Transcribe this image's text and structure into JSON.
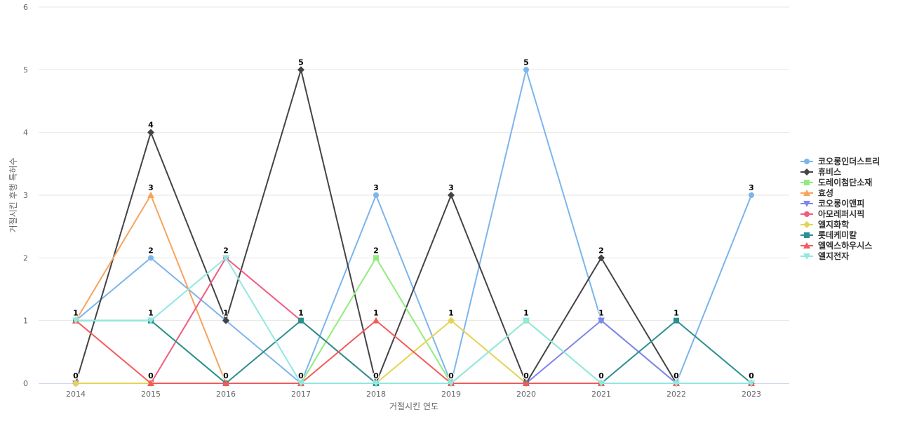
{
  "chart_data": {
    "type": "line",
    "title": "",
    "xlabel": "거절시킨 연도",
    "ylabel": "거절시킨 후행 특허수",
    "categories": [
      "2014",
      "2015",
      "2016",
      "2017",
      "2018",
      "2019",
      "2020",
      "2021",
      "2022",
      "2023"
    ],
    "ylim": [
      0,
      6
    ],
    "yticks": [
      0,
      1,
      2,
      3,
      4,
      5,
      6
    ],
    "grid": true,
    "legend_position": "right",
    "series": [
      {
        "name": "코오롱인더스트리",
        "color": "#7cb5ec",
        "marker": "circle",
        "values": [
          1,
          2,
          1,
          0,
          3,
          0,
          5,
          1,
          0,
          3
        ]
      },
      {
        "name": "휴비스",
        "color": "#434348",
        "marker": "diamond",
        "values": [
          0,
          4,
          1,
          5,
          0,
          3,
          0,
          2,
          0,
          0
        ]
      },
      {
        "name": "도레이첨단소재",
        "color": "#90ed7d",
        "marker": "square",
        "values": [
          1,
          1,
          0,
          0,
          2,
          0,
          1,
          0,
          0,
          0
        ]
      },
      {
        "name": "효성",
        "color": "#f7a35c",
        "marker": "triangle",
        "values": [
          1,
          3,
          0,
          0,
          0,
          0,
          0,
          0,
          0,
          0
        ]
      },
      {
        "name": "코오롱이앤피",
        "color": "#8085e9",
        "marker": "triangle-down",
        "values": [
          0,
          0,
          0,
          0,
          0,
          0,
          0,
          1,
          0,
          0
        ]
      },
      {
        "name": "아모레퍼시픽",
        "color": "#f15c80",
        "marker": "circle",
        "values": [
          0,
          0,
          2,
          1,
          0,
          0,
          0,
          0,
          0,
          0
        ]
      },
      {
        "name": "엘지화학",
        "color": "#e4d354",
        "marker": "diamond",
        "values": [
          0,
          0,
          0,
          0,
          0,
          1,
          0,
          0,
          0,
          0
        ]
      },
      {
        "name": "롯데케미칼",
        "color": "#2b908f",
        "marker": "square",
        "values": [
          1,
          1,
          0,
          1,
          0,
          0,
          0,
          0,
          1,
          0
        ]
      },
      {
        "name": "엘엑스하우시스",
        "color": "#f45b5b",
        "marker": "triangle",
        "values": [
          1,
          0,
          0,
          0,
          1,
          0,
          0,
          0,
          0,
          0
        ]
      },
      {
        "name": "엘지전자",
        "color": "#91e8e1",
        "marker": "triangle-down",
        "values": [
          1,
          1,
          2,
          0,
          0,
          0,
          1,
          0,
          0,
          0
        ]
      }
    ],
    "data_labels": [
      {
        "category": "2014",
        "value": 1,
        "text": "1"
      },
      {
        "category": "2014",
        "value": 0,
        "text": "0"
      },
      {
        "category": "2015",
        "value": 4,
        "text": "4"
      },
      {
        "category": "2015",
        "value": 3,
        "text": "3"
      },
      {
        "category": "2015",
        "value": 2,
        "text": "2"
      },
      {
        "category": "2015",
        "value": 1,
        "text": "1"
      },
      {
        "category": "2015",
        "value": 0,
        "text": "0"
      },
      {
        "category": "2016",
        "value": 2,
        "text": "2"
      },
      {
        "category": "2016",
        "value": 1,
        "text": "1"
      },
      {
        "category": "2016",
        "value": 0,
        "text": "0"
      },
      {
        "category": "2017",
        "value": 5,
        "text": "5"
      },
      {
        "category": "2017",
        "value": 1,
        "text": "1"
      },
      {
        "category": "2017",
        "value": 0,
        "text": "0"
      },
      {
        "category": "2018",
        "value": 3,
        "text": "3"
      },
      {
        "category": "2018",
        "value": 2,
        "text": "2"
      },
      {
        "category": "2018",
        "value": 1,
        "text": "1"
      },
      {
        "category": "2018",
        "value": 0,
        "text": "0"
      },
      {
        "category": "2019",
        "value": 3,
        "text": "3"
      },
      {
        "category": "2019",
        "value": 1,
        "text": "1"
      },
      {
        "category": "2019",
        "value": 0,
        "text": "0"
      },
      {
        "category": "2020",
        "value": 5,
        "text": "5"
      },
      {
        "category": "2020",
        "value": 1,
        "text": "1"
      },
      {
        "category": "2020",
        "value": 0,
        "text": "0"
      },
      {
        "category": "2021",
        "value": 2,
        "text": "2"
      },
      {
        "category": "2021",
        "value": 1,
        "text": "1"
      },
      {
        "category": "2021",
        "value": 0,
        "text": "0"
      },
      {
        "category": "2022",
        "value": 1,
        "text": "1"
      },
      {
        "category": "2022",
        "value": 0,
        "text": "0"
      },
      {
        "category": "2023",
        "value": 3,
        "text": "3"
      },
      {
        "category": "2023",
        "value": 0,
        "text": "0"
      }
    ]
  }
}
